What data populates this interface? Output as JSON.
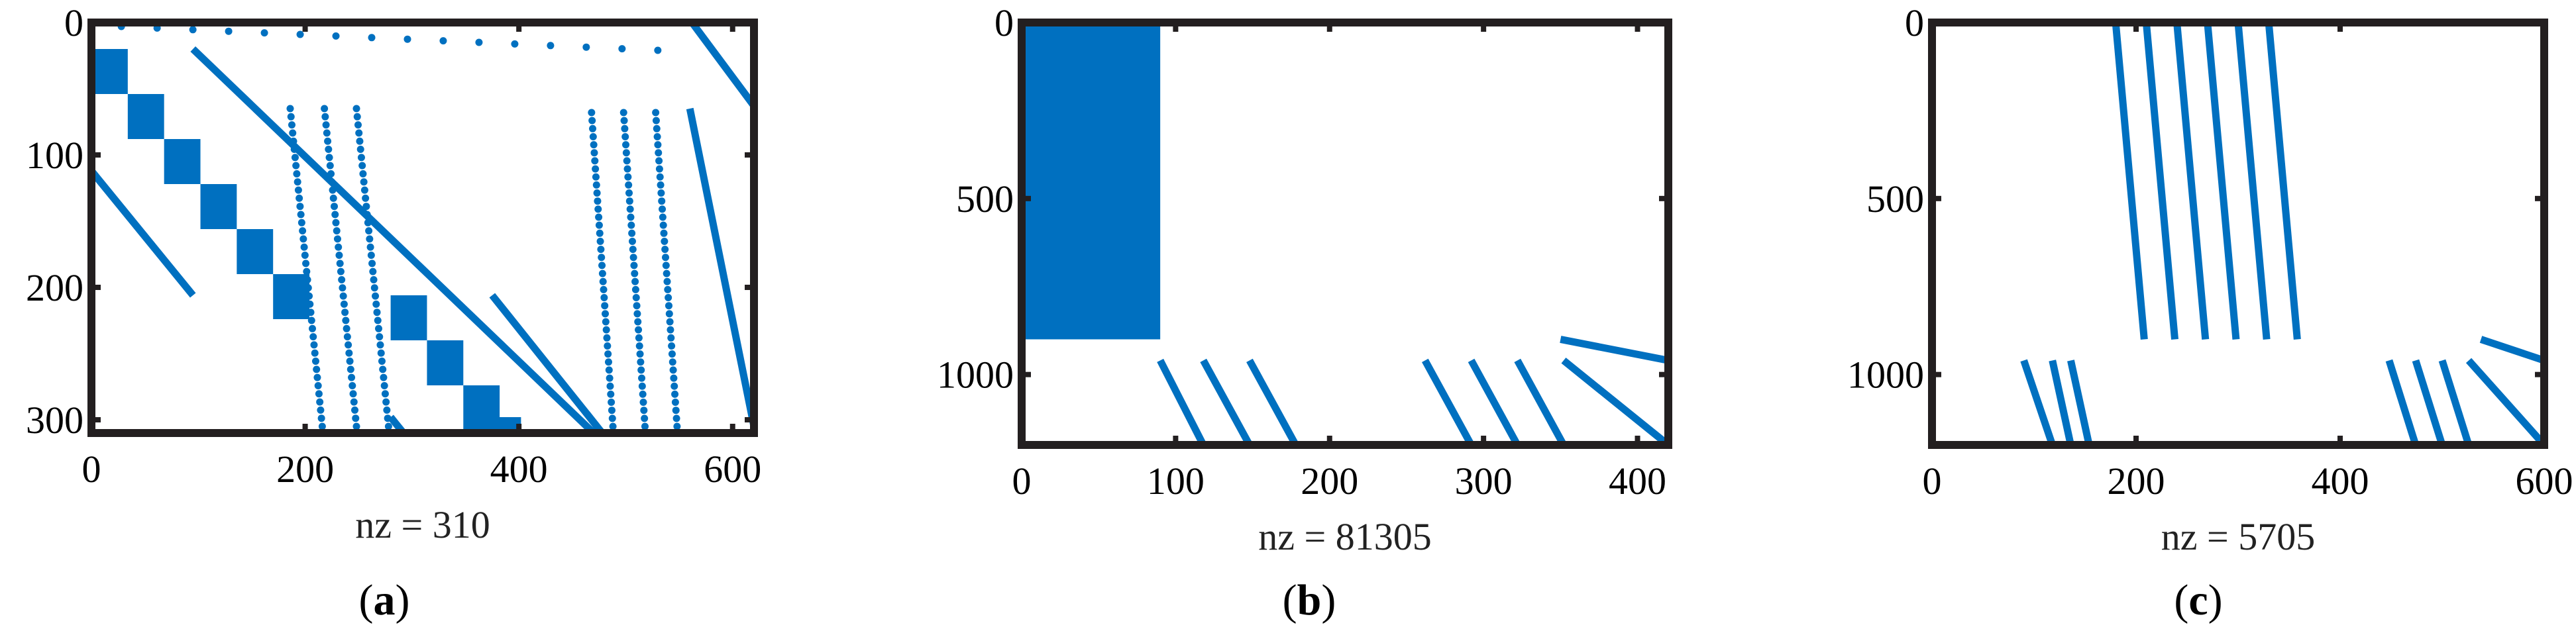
{
  "colors": {
    "marker": "#0070c0",
    "axes": "#231f20",
    "background": "#ffffff"
  },
  "chart_data": [
    {
      "type": "scatter",
      "panel_label": "a",
      "xlabel": "nz = 310",
      "xlim": [
        0,
        620
      ],
      "ylim": [
        0,
        310
      ],
      "y_reversed": true,
      "xticks": [
        0,
        200,
        400,
        600
      ],
      "yticks": [
        0,
        100,
        200,
        300
      ],
      "dense_blocks": [
        {
          "x0": 0,
          "x1": 34,
          "y0": 20,
          "y1": 54
        },
        {
          "x0": 34,
          "x1": 68,
          "y0": 54,
          "y1": 88
        },
        {
          "x0": 68,
          "x1": 102,
          "y0": 88,
          "y1": 122
        },
        {
          "x0": 102,
          "x1": 136,
          "y0": 122,
          "y1": 156
        },
        {
          "x0": 136,
          "x1": 170,
          "y0": 156,
          "y1": 190
        },
        {
          "x0": 170,
          "x1": 204,
          "y0": 190,
          "y1": 224
        },
        {
          "x0": 280,
          "x1": 314,
          "y0": 206,
          "y1": 240
        },
        {
          "x0": 314,
          "x1": 348,
          "y0": 240,
          "y1": 274
        },
        {
          "x0": 348,
          "x1": 382,
          "y0": 274,
          "y1": 308
        },
        {
          "x0": 368,
          "x1": 402,
          "y0": 298,
          "y1": 310
        }
      ],
      "segments": [
        {
          "x0": 95,
          "y0": 20,
          "x1": 470,
          "y1": 310
        },
        {
          "x0": 0,
          "y0": 112,
          "x1": 95,
          "y1": 206
        },
        {
          "x0": 375,
          "y0": 206,
          "x1": 478,
          "y1": 310
        },
        {
          "x0": 562,
          "y0": 0,
          "x1": 620,
          "y1": 63
        },
        {
          "x0": 560,
          "y0": 65,
          "x1": 620,
          "y1": 305
        },
        {
          "x0": 280,
          "y0": 298,
          "x1": 292,
          "y1": 310
        }
      ],
      "dotted_segments": [
        {
          "x0": 186,
          "y0": 65,
          "x1": 216,
          "y1": 305,
          "n": 40
        },
        {
          "x0": 218,
          "y0": 65,
          "x1": 248,
          "y1": 305,
          "n": 40
        },
        {
          "x0": 248,
          "y0": 65,
          "x1": 278,
          "y1": 305,
          "n": 40
        },
        {
          "x0": 468,
          "y0": 68,
          "x1": 488,
          "y1": 305,
          "n": 40
        },
        {
          "x0": 498,
          "y0": 68,
          "x1": 518,
          "y1": 305,
          "n": 40
        },
        {
          "x0": 528,
          "y0": 68,
          "x1": 548,
          "y1": 305,
          "n": 40
        },
        {
          "x0": 28,
          "y0": 3,
          "x1": 530,
          "y1": 21,
          "n": 16
        }
      ]
    },
    {
      "type": "scatter",
      "panel_label": "b",
      "xlabel": "nz = 81305",
      "xlim": [
        0,
        420
      ],
      "ylim": [
        0,
        1200
      ],
      "y_reversed": true,
      "xticks": [
        0,
        100,
        200,
        300,
        400
      ],
      "yticks": [
        0,
        500,
        1000
      ],
      "dense_blocks": [
        {
          "x0": 0,
          "x1": 90,
          "y0": 0,
          "y1": 900
        }
      ],
      "segments": [
        {
          "x0": 90,
          "y0": 960,
          "x1": 118,
          "y1": 1200
        },
        {
          "x0": 118,
          "y0": 960,
          "x1": 148,
          "y1": 1200
        },
        {
          "x0": 148,
          "y0": 960,
          "x1": 178,
          "y1": 1200
        },
        {
          "x0": 262,
          "y0": 960,
          "x1": 292,
          "y1": 1200
        },
        {
          "x0": 292,
          "y0": 960,
          "x1": 322,
          "y1": 1200
        },
        {
          "x0": 322,
          "y0": 960,
          "x1": 352,
          "y1": 1200
        },
        {
          "x0": 352,
          "y0": 960,
          "x1": 420,
          "y1": 1200
        },
        {
          "x0": 350,
          "y0": 900,
          "x1": 420,
          "y1": 960
        }
      ],
      "dotted_segments": []
    },
    {
      "type": "scatter",
      "panel_label": "c",
      "xlabel": "nz = 5705",
      "xlim": [
        0,
        600
      ],
      "ylim": [
        0,
        1200
      ],
      "y_reversed": true,
      "xticks": [
        0,
        200,
        400,
        600
      ],
      "yticks": [
        0,
        500,
        1000
      ],
      "dense_blocks": [],
      "segments": [
        {
          "x0": 180,
          "y0": 0,
          "x1": 208,
          "y1": 900
        },
        {
          "x0": 210,
          "y0": 0,
          "x1": 238,
          "y1": 900
        },
        {
          "x0": 240,
          "y0": 0,
          "x1": 268,
          "y1": 900
        },
        {
          "x0": 270,
          "y0": 0,
          "x1": 298,
          "y1": 900
        },
        {
          "x0": 300,
          "y0": 0,
          "x1": 328,
          "y1": 900
        },
        {
          "x0": 330,
          "y0": 0,
          "x1": 358,
          "y1": 900
        },
        {
          "x0": 90,
          "y0": 960,
          "x1": 118,
          "y1": 1200
        },
        {
          "x0": 118,
          "y0": 960,
          "x1": 136,
          "y1": 1200
        },
        {
          "x0": 136,
          "y0": 960,
          "x1": 154,
          "y1": 1200
        },
        {
          "x0": 448,
          "y0": 960,
          "x1": 474,
          "y1": 1200
        },
        {
          "x0": 474,
          "y0": 960,
          "x1": 500,
          "y1": 1200
        },
        {
          "x0": 500,
          "y0": 960,
          "x1": 526,
          "y1": 1200
        },
        {
          "x0": 526,
          "y0": 960,
          "x1": 600,
          "y1": 1200
        },
        {
          "x0": 538,
          "y0": 900,
          "x1": 600,
          "y1": 960
        }
      ],
      "dotted_segments": []
    }
  ]
}
